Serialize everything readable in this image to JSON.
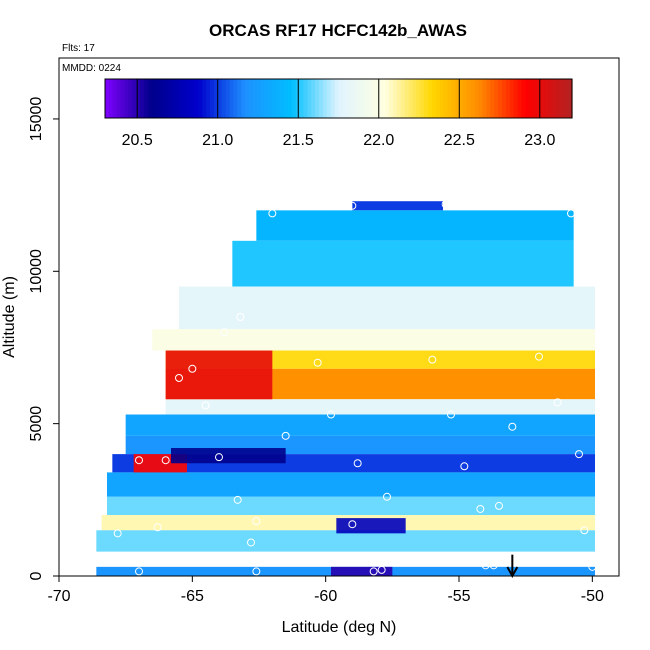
{
  "chart_data": {
    "type": "heatmap",
    "title": "ORCAS RF17 HCFC142b_AWAS",
    "flights_label": "Flts: 17",
    "date_label": "MMDD: 0224",
    "xlabel": "Latitude (deg N)",
    "ylabel": "Altitude (m)",
    "xlim": [
      -70,
      -49
    ],
    "ylim": [
      0,
      17000
    ],
    "x_ticks": [
      -70,
      -65,
      -60,
      -55,
      -50
    ],
    "x_tick_labels": [
      "-70",
      "-65",
      "-60",
      "-55",
      "-50"
    ],
    "y_ticks": [
      0,
      5000,
      10000,
      15000
    ],
    "y_tick_labels": [
      "0",
      "5000",
      "10000",
      "15000"
    ],
    "colorbar": {
      "range": [
        20.3,
        23.2
      ],
      "ticks": [
        20.5,
        21.0,
        21.5,
        22.0,
        22.5,
        23.0
      ],
      "tick_labels": [
        "20.5",
        "21.0",
        "21.5",
        "22.0",
        "22.5",
        "23.0"
      ],
      "colors": [
        "#8000ff",
        "#00008b",
        "#0000cd",
        "#1e90ff",
        "#00bfff",
        "#e0f4ff",
        "#ffffe0",
        "#ffd700",
        "#ff8c00",
        "#ff0000",
        "#b22222"
      ]
    },
    "bands": [
      {
        "alt_range": [
          12000,
          12300
        ],
        "lat_range": [
          -59.0,
          -55.6
        ],
        "value": 21.0
      },
      {
        "alt_range": [
          11000,
          12000
        ],
        "lat_range": [
          -62.6,
          -50.7
        ],
        "value": 21.4
      },
      {
        "alt_range": [
          9500,
          11000
        ],
        "lat_range": [
          -63.5,
          -50.7
        ],
        "value": 21.5
      },
      {
        "alt_range": [
          8100,
          9500
        ],
        "lat_range": [
          -65.5,
          -49.9
        ],
        "value": 21.8
      },
      {
        "alt_range": [
          7400,
          8100
        ],
        "lat_range": [
          -66.5,
          -49.9
        ],
        "value": 22.0
      },
      {
        "alt_range": [
          6800,
          7400
        ],
        "lat_range": [
          -66.0,
          -49.9
        ],
        "value": 22.3
      },
      {
        "alt_range": [
          5800,
          6800
        ],
        "lat_range": [
          -66.0,
          -49.9
        ],
        "value": 22.6
      },
      {
        "alt_range": [
          5300,
          5800
        ],
        "lat_range": [
          -66.0,
          -49.9
        ],
        "value": 21.8
      },
      {
        "alt_range": [
          4600,
          5300
        ],
        "lat_range": [
          -67.5,
          -49.9
        ],
        "value": 21.3
      },
      {
        "alt_range": [
          4000,
          4600
        ],
        "lat_range": [
          -67.5,
          -49.9
        ],
        "value": 21.2
      },
      {
        "alt_range": [
          3400,
          4000
        ],
        "lat_range": [
          -68.0,
          -49.9
        ],
        "value": 21.0
      },
      {
        "alt_range": [
          2600,
          3400
        ],
        "lat_range": [
          -68.2,
          -49.9
        ],
        "value": 21.3
      },
      {
        "alt_range": [
          2000,
          2600
        ],
        "lat_range": [
          -68.2,
          -49.9
        ],
        "value": 21.6
      },
      {
        "alt_range": [
          1500,
          2000
        ],
        "lat_range": [
          -68.4,
          -49.9
        ],
        "value": 22.1
      },
      {
        "alt_range": [
          800,
          1500
        ],
        "lat_range": [
          -68.6,
          -49.9
        ],
        "value": 21.6
      },
      {
        "alt_range": [
          0,
          300
        ],
        "lat_range": [
          -68.6,
          -49.9
        ],
        "value": 21.2
      }
    ],
    "hotspots": [
      {
        "lat_range": [
          -66.0,
          -62.0
        ],
        "alt_range": [
          5800,
          7400
        ],
        "value": 23.0
      },
      {
        "lat_range": [
          -67.2,
          -65.2
        ],
        "alt_range": [
          3400,
          4000
        ],
        "value": 22.9
      },
      {
        "lat_range": [
          -65.8,
          -61.5
        ],
        "alt_range": [
          3700,
          4200
        ],
        "value": 20.6
      },
      {
        "lat_range": [
          -59.6,
          -57.0
        ],
        "alt_range": [
          1400,
          1900
        ],
        "value": 20.8
      },
      {
        "lat_range": [
          -59.8,
          -57.5
        ],
        "alt_range": [
          0,
          300
        ],
        "value": 20.5
      }
    ],
    "samples": [
      {
        "lat": -62.0,
        "alt": 11900
      },
      {
        "lat": -59.0,
        "alt": 12150
      },
      {
        "lat": -55.5,
        "alt": 12200
      },
      {
        "lat": -50.8,
        "alt": 11900
      },
      {
        "lat": -63.8,
        "alt": 9900
      },
      {
        "lat": -63.2,
        "alt": 8500
      },
      {
        "lat": -63.8,
        "alt": 8000
      },
      {
        "lat": -60.3,
        "alt": 7000
      },
      {
        "lat": -56.0,
        "alt": 7100
      },
      {
        "lat": -52.0,
        "alt": 7200
      },
      {
        "lat": -65.0,
        "alt": 6800
      },
      {
        "lat": -65.5,
        "alt": 6500
      },
      {
        "lat": -64.5,
        "alt": 5600
      },
      {
        "lat": -59.8,
        "alt": 5300
      },
      {
        "lat": -55.3,
        "alt": 5300
      },
      {
        "lat": -51.3,
        "alt": 5700
      },
      {
        "lat": -61.5,
        "alt": 4600
      },
      {
        "lat": -53.0,
        "alt": 4900
      },
      {
        "lat": -67.0,
        "alt": 3800
      },
      {
        "lat": -66.0,
        "alt": 3800
      },
      {
        "lat": -64.0,
        "alt": 3900
      },
      {
        "lat": -58.8,
        "alt": 3700
      },
      {
        "lat": -54.8,
        "alt": 3600
      },
      {
        "lat": -50.5,
        "alt": 4000
      },
      {
        "lat": -63.3,
        "alt": 2500
      },
      {
        "lat": -57.7,
        "alt": 2600
      },
      {
        "lat": -54.2,
        "alt": 2200
      },
      {
        "lat": -53.5,
        "alt": 2300
      },
      {
        "lat": -66.3,
        "alt": 1600
      },
      {
        "lat": -62.6,
        "alt": 1800
      },
      {
        "lat": -59.0,
        "alt": 1700
      },
      {
        "lat": -50.3,
        "alt": 1500
      },
      {
        "lat": -62.8,
        "alt": 1100
      },
      {
        "lat": -67.8,
        "alt": 1400
      },
      {
        "lat": -67.0,
        "alt": 150
      },
      {
        "lat": -62.6,
        "alt": 150
      },
      {
        "lat": -58.2,
        "alt": 150
      },
      {
        "lat": -57.9,
        "alt": 200
      },
      {
        "lat": -54.0,
        "alt": 350
      },
      {
        "lat": -53.7,
        "alt": 350
      },
      {
        "lat": -50.0,
        "alt": 300
      }
    ],
    "arrow": {
      "lat": -53.0,
      "alt_top": 700,
      "alt_bottom": 0
    }
  }
}
